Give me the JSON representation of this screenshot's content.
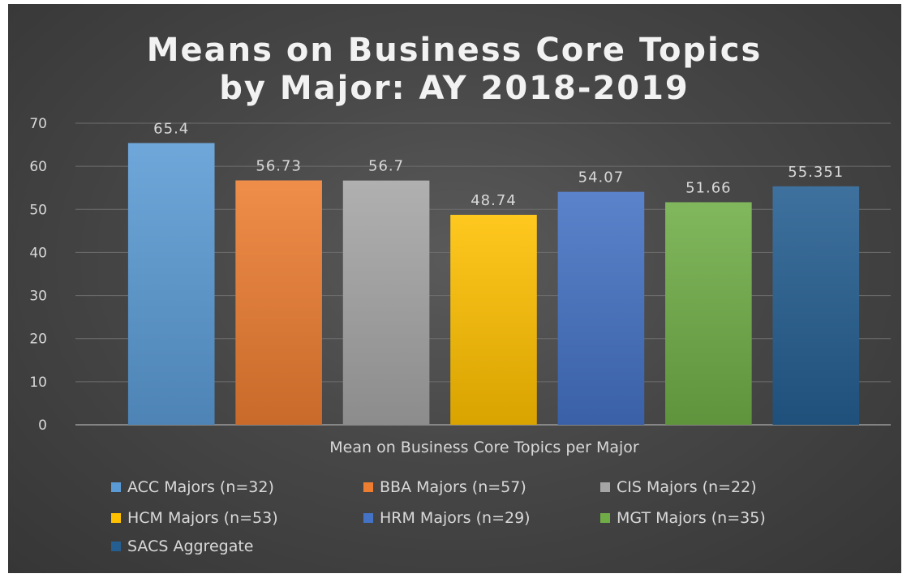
{
  "chart_data": {
    "type": "bar",
    "title_lines": [
      "Means on Business Core Topics",
      "by Major: AY 2018-2019"
    ],
    "xlabel": "Mean on Business Core Topics per Major",
    "ylabel": "",
    "ylim": [
      0,
      70
    ],
    "yticks": [
      0,
      10,
      20,
      30,
      40,
      50,
      60,
      70
    ],
    "grid": true,
    "legend_position": "bottom",
    "categories": [
      "Mean on Business Core Topics per Major"
    ],
    "series": [
      {
        "name": "ACC Majors (n=32)",
        "value": 65.4,
        "label": "65.4",
        "color": "#5b9bd5"
      },
      {
        "name": "BBA Majors (n=57)",
        "value": 56.73,
        "label": "56.73",
        "color": "#ed7d31"
      },
      {
        "name": "CIS Majors (n=22)",
        "value": 56.7,
        "label": "56.7",
        "color": "#a5a5a5"
      },
      {
        "name": "HCM Majors (n=53)",
        "value": 48.74,
        "label": "48.74",
        "color": "#ffc000"
      },
      {
        "name": "HRM Majors (n=29)",
        "value": 54.07,
        "label": "54.07",
        "color": "#4472c4"
      },
      {
        "name": "MGT Majors (n=35)",
        "value": 51.66,
        "label": "51.66",
        "color": "#70ad47"
      },
      {
        "name": "SACS Aggregate",
        "value": 55.351,
        "label": "55.351",
        "color": "#255e91"
      }
    ]
  }
}
